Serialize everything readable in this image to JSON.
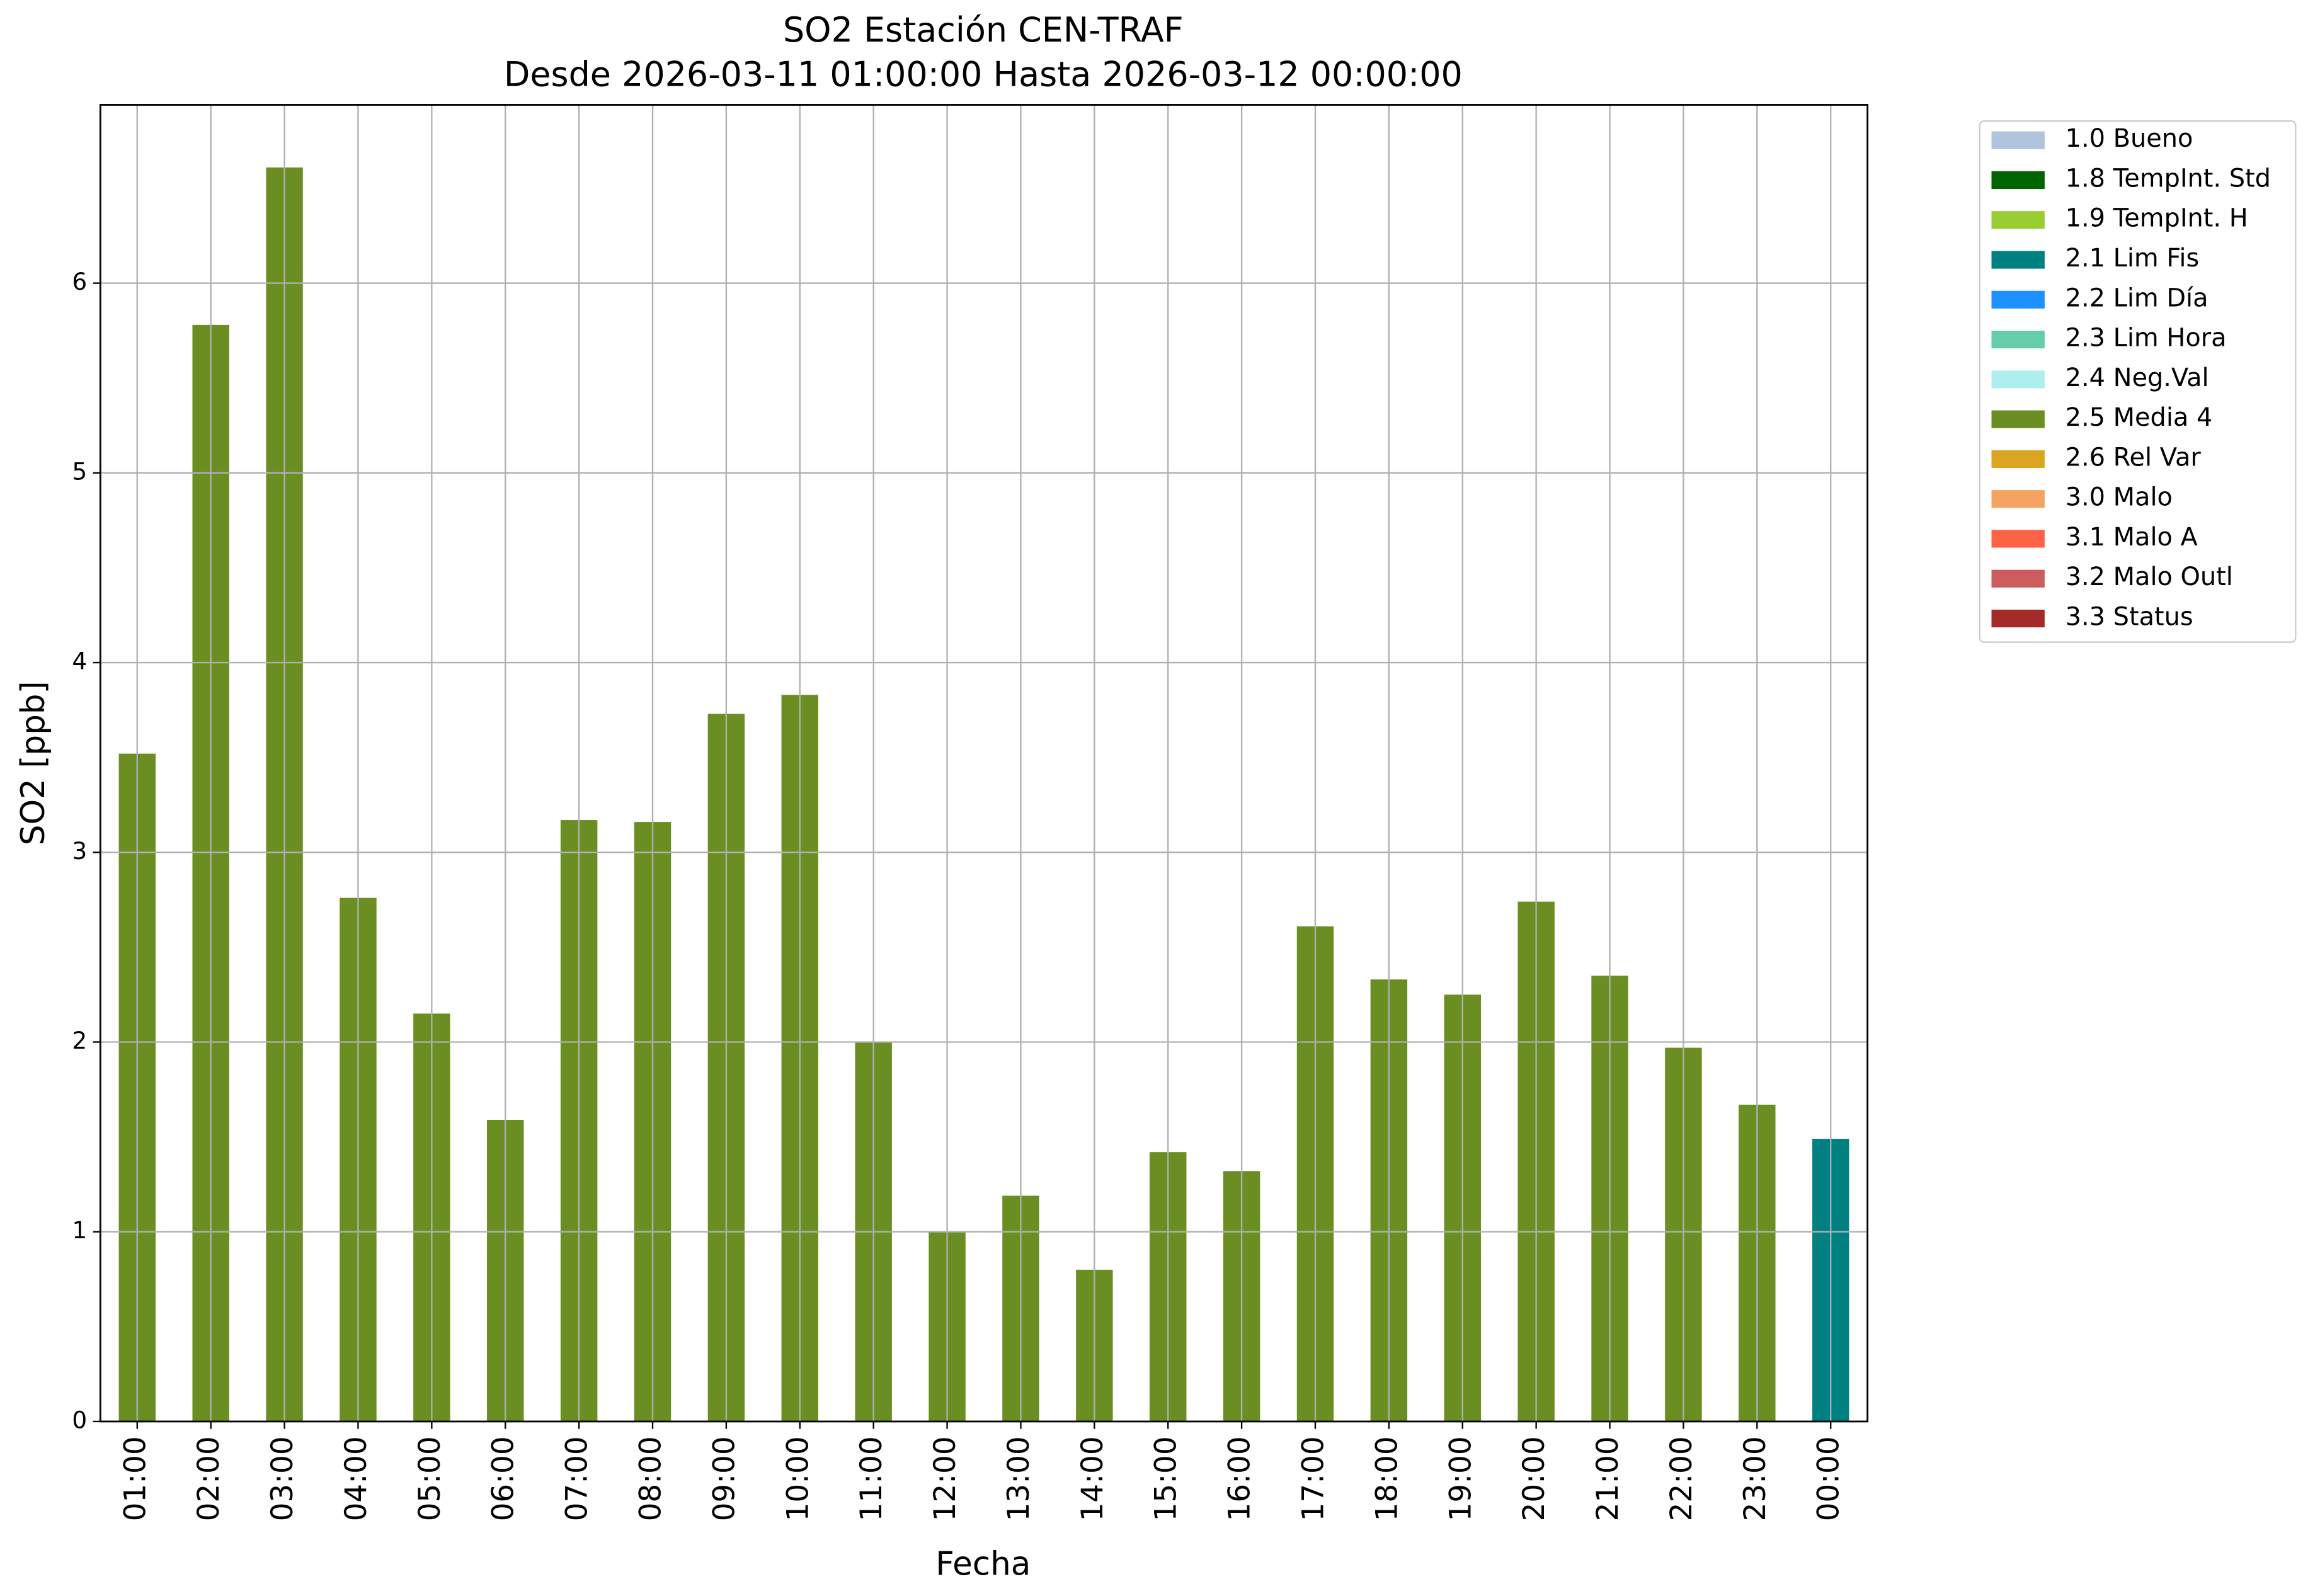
{
  "chart_data": {
    "type": "bar",
    "stacked": true,
    "title": "SO2 Estación CEN-TRAF",
    "subtitle": "Desde 2026-03-11 01:00:00 Hasta 2026-03-12 00:00:00",
    "x_label": "Fecha",
    "y_label": "SO2 [ppb]",
    "categories": [
      "01:00",
      "02:00",
      "03:00",
      "04:00",
      "05:00",
      "06:00",
      "07:00",
      "08:00",
      "09:00",
      "10:00",
      "11:00",
      "12:00",
      "13:00",
      "14:00",
      "15:00",
      "16:00",
      "17:00",
      "18:00",
      "19:00",
      "20:00",
      "21:00",
      "22:00",
      "23:00",
      "00:00"
    ],
    "series": [
      {
        "name": "1.0 Bueno",
        "color": "#b0c4de",
        "values": [
          null,
          null,
          null,
          null,
          null,
          null,
          null,
          null,
          null,
          null,
          null,
          null,
          null,
          null,
          null,
          null,
          null,
          null,
          null,
          null,
          null,
          null,
          null,
          null
        ]
      },
      {
        "name": "1.8 TempInt. Std",
        "color": "#006400",
        "values": [
          null,
          null,
          null,
          null,
          null,
          null,
          null,
          null,
          null,
          null,
          null,
          null,
          null,
          null,
          null,
          null,
          null,
          null,
          null,
          null,
          null,
          null,
          null,
          null
        ]
      },
      {
        "name": "1.9 TempInt. H",
        "color": "#9acd32",
        "values": [
          null,
          null,
          null,
          null,
          null,
          null,
          null,
          null,
          null,
          null,
          null,
          null,
          null,
          null,
          null,
          null,
          null,
          null,
          null,
          null,
          null,
          null,
          null,
          null
        ]
      },
      {
        "name": "2.1 Lim Fis",
        "color": "#008080",
        "values": [
          null,
          null,
          null,
          null,
          null,
          null,
          null,
          null,
          null,
          null,
          null,
          null,
          null,
          null,
          null,
          null,
          null,
          null,
          null,
          null,
          null,
          null,
          null,
          1.49
        ]
      },
      {
        "name": "2.2 Lim Día",
        "color": "#1e90ff",
        "values": [
          null,
          null,
          null,
          null,
          null,
          null,
          null,
          null,
          null,
          null,
          null,
          null,
          null,
          null,
          null,
          null,
          null,
          null,
          null,
          null,
          null,
          null,
          null,
          null
        ]
      },
      {
        "name": "2.3 Lim Hora",
        "color": "#66cdaa",
        "values": [
          null,
          null,
          null,
          null,
          null,
          null,
          null,
          null,
          null,
          null,
          null,
          null,
          null,
          null,
          null,
          null,
          null,
          null,
          null,
          null,
          null,
          null,
          null,
          null
        ]
      },
      {
        "name": "2.4 Neg.Val",
        "color": "#afeeee",
        "values": [
          null,
          null,
          null,
          null,
          null,
          null,
          null,
          null,
          null,
          null,
          null,
          null,
          null,
          null,
          null,
          null,
          null,
          null,
          null,
          null,
          null,
          null,
          null,
          null
        ]
      },
      {
        "name": "2.5 Media 4",
        "color": "#6b8e23",
        "values": [
          3.52,
          5.78,
          6.61,
          2.76,
          2.15,
          1.59,
          3.17,
          3.16,
          3.73,
          3.83,
          2.0,
          1.0,
          1.19,
          0.8,
          1.42,
          1.32,
          2.61,
          2.33,
          2.25,
          2.74,
          2.35,
          1.97,
          1.67,
          null
        ]
      },
      {
        "name": "2.6 Rel Var",
        "color": "#daa520",
        "values": [
          null,
          null,
          null,
          null,
          null,
          null,
          null,
          null,
          null,
          null,
          null,
          null,
          null,
          null,
          null,
          null,
          null,
          null,
          null,
          null,
          null,
          null,
          null,
          null
        ]
      },
      {
        "name": "3.0 Malo",
        "color": "#f4a460",
        "values": [
          null,
          null,
          null,
          null,
          null,
          null,
          null,
          null,
          null,
          null,
          null,
          null,
          null,
          null,
          null,
          null,
          null,
          null,
          null,
          null,
          null,
          null,
          null,
          null
        ]
      },
      {
        "name": "3.1 Malo A",
        "color": "#ff6347",
        "values": [
          null,
          null,
          null,
          null,
          null,
          null,
          null,
          null,
          null,
          null,
          null,
          null,
          null,
          null,
          null,
          null,
          null,
          null,
          null,
          null,
          null,
          null,
          null,
          null
        ]
      },
      {
        "name": "3.2 Malo Outl",
        "color": "#cd5c5c",
        "values": [
          null,
          null,
          null,
          null,
          null,
          null,
          null,
          null,
          null,
          null,
          null,
          null,
          null,
          null,
          null,
          null,
          null,
          null,
          null,
          null,
          null,
          null,
          null,
          null
        ]
      },
      {
        "name": "3.3 Status",
        "color": "#a52a2a",
        "values": [
          null,
          null,
          null,
          null,
          null,
          null,
          null,
          null,
          null,
          null,
          null,
          null,
          null,
          null,
          null,
          null,
          null,
          null,
          null,
          null,
          null,
          null,
          null,
          null
        ]
      }
    ],
    "ylim": [
      0,
      6.94
    ],
    "yticks": [
      0,
      1,
      2,
      3,
      4,
      5,
      6
    ],
    "grid": true,
    "legend": "outside right"
  }
}
